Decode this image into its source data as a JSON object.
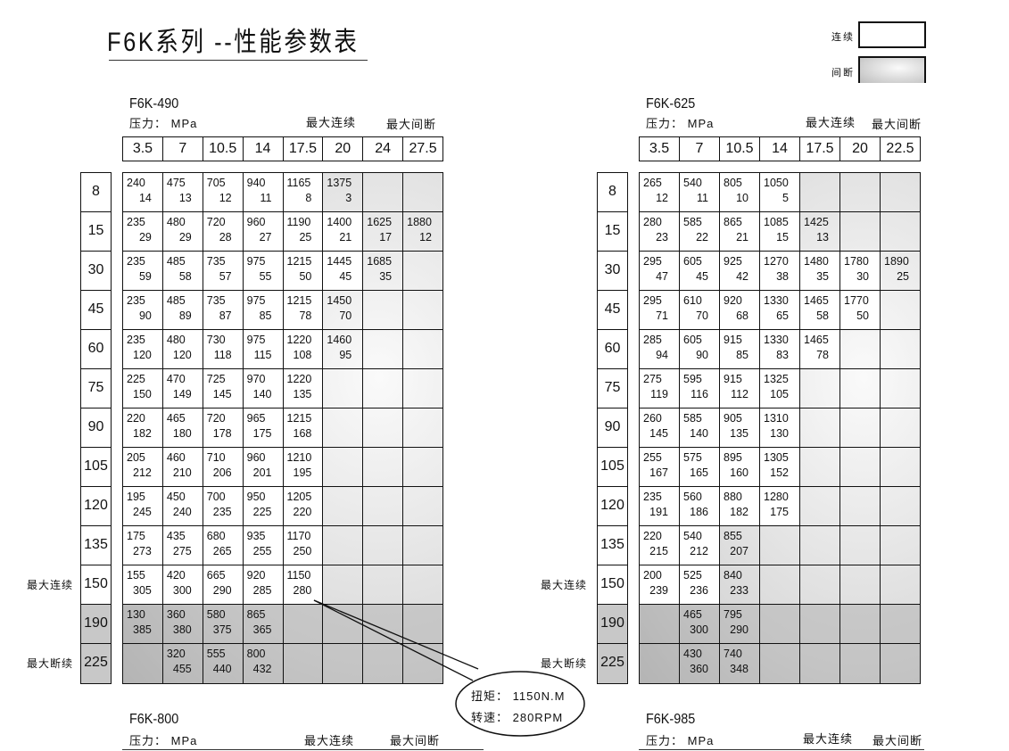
{
  "title": "F6K系列 --性能参数表",
  "legend": {
    "continuous": "连续",
    "intermittent": "间断"
  },
  "labels": {
    "pressure": "压力：  MPa",
    "max_cont": "最大连续",
    "max_int": "最大间断",
    "max_int_alt": "最大断续"
  },
  "tables": [
    {
      "model": "F6K-490",
      "pressures": [
        "3.5",
        "7",
        "10.5",
        "14",
        "17.5",
        "20",
        "24",
        "27.5"
      ],
      "rows": [
        {
          "disp": "8",
          "cont": 5,
          "cells": [
            [
              "240",
              "14"
            ],
            [
              "475",
              "13"
            ],
            [
              "705",
              "12"
            ],
            [
              "940",
              "11"
            ],
            [
              "1165",
              "8"
            ],
            [
              "1375",
              "3"
            ],
            null,
            null
          ]
        },
        {
          "disp": "15",
          "cont": 6,
          "cells": [
            [
              "235",
              "29"
            ],
            [
              "480",
              "29"
            ],
            [
              "720",
              "28"
            ],
            [
              "960",
              "27"
            ],
            [
              "1190",
              "25"
            ],
            [
              "1400",
              "21"
            ],
            [
              "1625",
              "17"
            ],
            [
              "1880",
              "12"
            ]
          ]
        },
        {
          "disp": "30",
          "cont": 6,
          "cells": [
            [
              "235",
              "59"
            ],
            [
              "485",
              "58"
            ],
            [
              "735",
              "57"
            ],
            [
              "975",
              "55"
            ],
            [
              "1215",
              "50"
            ],
            [
              "1445",
              "45"
            ],
            [
              "1685",
              "35"
            ],
            null
          ]
        },
        {
          "disp": "45",
          "cont": 5,
          "cells": [
            [
              "235",
              "90"
            ],
            [
              "485",
              "89"
            ],
            [
              "735",
              "87"
            ],
            [
              "975",
              "85"
            ],
            [
              "1215",
              "78"
            ],
            [
              "1450",
              "70"
            ],
            null,
            null
          ]
        },
        {
          "disp": "60",
          "cont": 5,
          "cells": [
            [
              "235",
              "120"
            ],
            [
              "480",
              "120"
            ],
            [
              "730",
              "118"
            ],
            [
              "975",
              "115"
            ],
            [
              "1220",
              "108"
            ],
            [
              "1460",
              "95"
            ],
            null,
            null
          ]
        },
        {
          "disp": "75",
          "cont": 5,
          "cells": [
            [
              "225",
              "150"
            ],
            [
              "470",
              "149"
            ],
            [
              "725",
              "145"
            ],
            [
              "970",
              "140"
            ],
            [
              "1220",
              "135"
            ],
            null,
            null,
            null
          ]
        },
        {
          "disp": "90",
          "cont": 5,
          "cells": [
            [
              "220",
              "182"
            ],
            [
              "465",
              "180"
            ],
            [
              "720",
              "178"
            ],
            [
              "965",
              "175"
            ],
            [
              "1215",
              "168"
            ],
            null,
            null,
            null
          ]
        },
        {
          "disp": "105",
          "cont": 5,
          "cells": [
            [
              "205",
              "212"
            ],
            [
              "460",
              "210"
            ],
            [
              "710",
              "206"
            ],
            [
              "960",
              "201"
            ],
            [
              "1210",
              "195"
            ],
            null,
            null,
            null
          ]
        },
        {
          "disp": "120",
          "cont": 5,
          "cells": [
            [
              "195",
              "245"
            ],
            [
              "450",
              "240"
            ],
            [
              "700",
              "235"
            ],
            [
              "950",
              "225"
            ],
            [
              "1205",
              "220"
            ],
            null,
            null,
            null
          ]
        },
        {
          "disp": "135",
          "cont": 5,
          "cells": [
            [
              "175",
              "273"
            ],
            [
              "435",
              "275"
            ],
            [
              "680",
              "265"
            ],
            [
              "935",
              "255"
            ],
            [
              "1170",
              "250"
            ],
            null,
            null,
            null
          ]
        },
        {
          "disp": "150",
          "cont": 5,
          "side": "最大连续",
          "cells": [
            [
              "155",
              "305"
            ],
            [
              "420",
              "300"
            ],
            [
              "665",
              "290"
            ],
            [
              "920",
              "285"
            ],
            [
              "1150",
              "280"
            ],
            null,
            null,
            null
          ]
        },
        {
          "disp": "190",
          "cont": 0,
          "cells": [
            [
              "130",
              "385"
            ],
            [
              "360",
              "380"
            ],
            [
              "580",
              "375"
            ],
            [
              "865",
              "365"
            ],
            null,
            null,
            null,
            null
          ]
        },
        {
          "disp": "225",
          "cont": 0,
          "side": "最大断续",
          "cells": [
            null,
            [
              "320",
              "455"
            ],
            [
              "555",
              "440"
            ],
            [
              "800",
              "432"
            ],
            null,
            null,
            null,
            null
          ]
        }
      ]
    },
    {
      "model": "F6K-625",
      "pressures": [
        "3.5",
        "7",
        "10.5",
        "14",
        "17.5",
        "20",
        "22.5"
      ],
      "rows": [
        {
          "disp": "8",
          "cont": 4,
          "cells": [
            [
              "265",
              "12"
            ],
            [
              "540",
              "11"
            ],
            [
              "805",
              "10"
            ],
            [
              "1050",
              "5"
            ],
            null,
            null,
            null
          ]
        },
        {
          "disp": "15",
          "cont": 4,
          "cells": [
            [
              "280",
              "23"
            ],
            [
              "585",
              "22"
            ],
            [
              "865",
              "21"
            ],
            [
              "1085",
              "15"
            ],
            [
              "1425",
              "13"
            ],
            null,
            null
          ]
        },
        {
          "disp": "30",
          "cont": 6,
          "cells": [
            [
              "295",
              "47"
            ],
            [
              "605",
              "45"
            ],
            [
              "925",
              "42"
            ],
            [
              "1270",
              "38"
            ],
            [
              "1480",
              "35"
            ],
            [
              "1780",
              "30"
            ],
            [
              "1890",
              "25"
            ]
          ]
        },
        {
          "disp": "45",
          "cont": 6,
          "cells": [
            [
              "295",
              "71"
            ],
            [
              "610",
              "70"
            ],
            [
              "920",
              "68"
            ],
            [
              "1330",
              "65"
            ],
            [
              "1465",
              "58"
            ],
            [
              "1770",
              "50"
            ],
            null
          ]
        },
        {
          "disp": "60",
          "cont": 5,
          "cells": [
            [
              "285",
              "94"
            ],
            [
              "605",
              "90"
            ],
            [
              "915",
              "85"
            ],
            [
              "1330",
              "83"
            ],
            [
              "1465",
              "78"
            ],
            null,
            null
          ]
        },
        {
          "disp": "75",
          "cont": 4,
          "cells": [
            [
              "275",
              "119"
            ],
            [
              "595",
              "116"
            ],
            [
              "915",
              "112"
            ],
            [
              "1325",
              "105"
            ],
            null,
            null,
            null
          ]
        },
        {
          "disp": "90",
          "cont": 4,
          "cells": [
            [
              "260",
              "145"
            ],
            [
              "585",
              "140"
            ],
            [
              "905",
              "135"
            ],
            [
              "1310",
              "130"
            ],
            null,
            null,
            null
          ]
        },
        {
          "disp": "105",
          "cont": 4,
          "cells": [
            [
              "255",
              "167"
            ],
            [
              "575",
              "165"
            ],
            [
              "895",
              "160"
            ],
            [
              "1305",
              "152"
            ],
            null,
            null,
            null
          ]
        },
        {
          "disp": "120",
          "cont": 4,
          "cells": [
            [
              "235",
              "191"
            ],
            [
              "560",
              "186"
            ],
            [
              "880",
              "182"
            ],
            [
              "1280",
              "175"
            ],
            null,
            null,
            null
          ]
        },
        {
          "disp": "135",
          "cont": 2,
          "cells": [
            [
              "220",
              "215"
            ],
            [
              "540",
              "212"
            ],
            [
              "855",
              "207"
            ],
            null,
            null,
            null,
            null
          ]
        },
        {
          "disp": "150",
          "cont": 2,
          "side": "最大连续",
          "cells": [
            [
              "200",
              "239"
            ],
            [
              "525",
              "236"
            ],
            [
              "840",
              "233"
            ],
            null,
            null,
            null,
            null
          ]
        },
        {
          "disp": "190",
          "cont": 0,
          "cells": [
            null,
            [
              "465",
              "300"
            ],
            [
              "795",
              "290"
            ],
            null,
            null,
            null,
            null
          ]
        },
        {
          "disp": "225",
          "cont": 0,
          "side": "最大断续",
          "cells": [
            null,
            [
              "430",
              "360"
            ],
            [
              "740",
              "348"
            ],
            null,
            null,
            null,
            null
          ]
        }
      ]
    }
  ],
  "callout": {
    "torque": "扭矩：  1150N.M",
    "speed": "转速：  280RPM"
  },
  "footer": [
    {
      "model": "F6K-800"
    },
    {
      "model": "F6K-985"
    }
  ]
}
